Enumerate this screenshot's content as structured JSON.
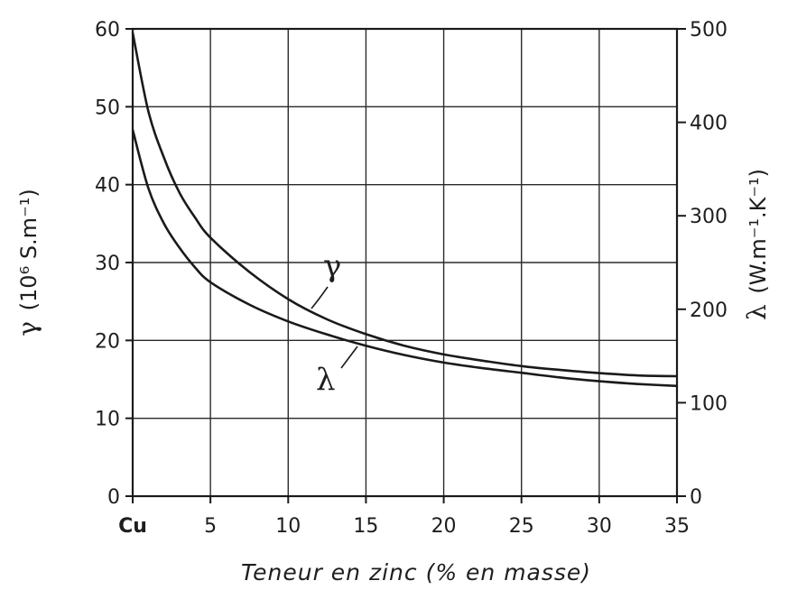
{
  "chart_data": {
    "type": "line",
    "x_tick_labels": [
      "Cu",
      "5",
      "10",
      "15",
      "20",
      "25",
      "30",
      "35"
    ],
    "x_ticks": [
      0,
      5,
      10,
      15,
      20,
      25,
      30,
      35
    ],
    "xlim": [
      0,
      35
    ],
    "xlabel": "Teneur en zinc (% en masse)",
    "y_left": {
      "symbol": "γ",
      "unit": "(10⁶ S.m⁻¹)",
      "ticks": [
        0,
        10,
        20,
        30,
        40,
        50,
        60
      ],
      "ylim": [
        0,
        60
      ]
    },
    "y_right": {
      "symbol": "λ",
      "unit": "(W.m⁻¹.K⁻¹)",
      "ticks": [
        0,
        100,
        200,
        300,
        400,
        500
      ],
      "ylim": [
        0,
        500
      ]
    },
    "grid": true,
    "series": [
      {
        "name": "γ",
        "axis": "left",
        "x": [
          0,
          1,
          2,
          3,
          4,
          5,
          7.5,
          10,
          12.5,
          15,
          17.5,
          20,
          22.5,
          25,
          27.5,
          30,
          32.5,
          35
        ],
        "y": [
          59.5,
          49.5,
          43.5,
          39.0,
          35.8,
          33.2,
          28.8,
          25.3,
          22.7,
          20.8,
          19.3,
          18.2,
          17.4,
          16.7,
          16.2,
          15.8,
          15.5,
          15.4
        ]
      },
      {
        "name": "λ",
        "axis": "right",
        "x": [
          0,
          1,
          2,
          3,
          4,
          5,
          7.5,
          10,
          12.5,
          15,
          17.5,
          20,
          22.5,
          25,
          27.5,
          30,
          32.5,
          35
        ],
        "y": [
          392,
          330,
          292,
          266,
          245,
          229,
          205,
          187,
          173,
          161,
          151,
          143,
          137,
          132,
          127,
          123,
          120,
          118
        ]
      }
    ]
  }
}
